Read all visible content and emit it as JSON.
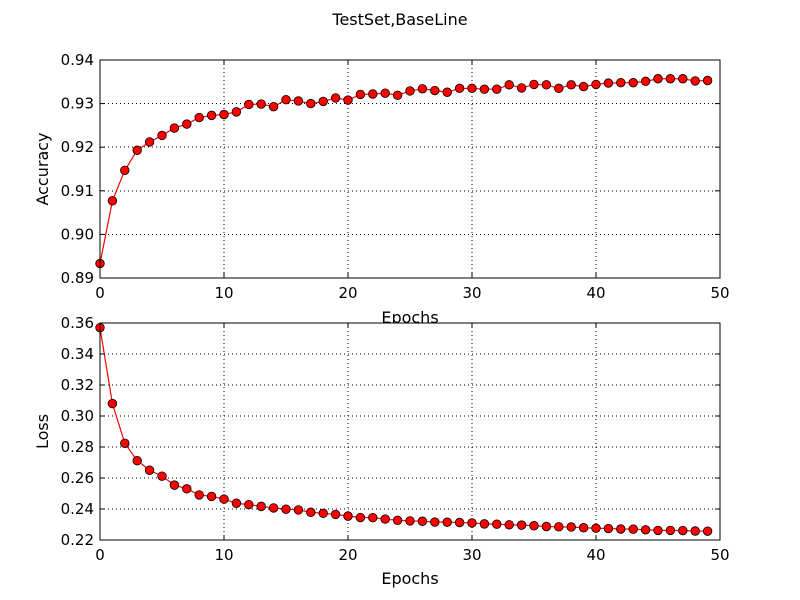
{
  "figure": {
    "suptitle": "TestSet,BaseLine"
  },
  "colors": {
    "line": "#ff0000",
    "marker_fill": "#ff0000",
    "marker_edge": "#000000",
    "grid": "#000000",
    "background": "#ffffff"
  },
  "chart_data": [
    {
      "type": "line",
      "title": "",
      "xlabel": "Epochs",
      "ylabel": "Accuracy",
      "xlim": [
        0,
        50
      ],
      "ylim": [
        0.89,
        0.94
      ],
      "xticks": [
        "0",
        "10",
        "20",
        "30",
        "40",
        "50"
      ],
      "yticks": [
        "0.89",
        "0.90",
        "0.91",
        "0.92",
        "0.93",
        "0.94"
      ],
      "grid": true,
      "marker": "circle",
      "series": [
        {
          "x": [
            0,
            1,
            2,
            3,
            4,
            5,
            6,
            7,
            8,
            9,
            10,
            11,
            12,
            13,
            14,
            15,
            16,
            17,
            18,
            19,
            20,
            21,
            22,
            23,
            24,
            25,
            26,
            27,
            28,
            29,
            30,
            31,
            32,
            33,
            34,
            35,
            36,
            37,
            38,
            39,
            40,
            41,
            42,
            43,
            44,
            45,
            46,
            47,
            48,
            49
          ],
          "values": [
            0.8933,
            0.9077,
            0.9147,
            0.9193,
            0.9212,
            0.9227,
            0.9244,
            0.9253,
            0.9268,
            0.9273,
            0.9275,
            0.9281,
            0.9298,
            0.9299,
            0.9293,
            0.9309,
            0.9306,
            0.93,
            0.9305,
            0.9313,
            0.9308,
            0.9321,
            0.9322,
            0.9324,
            0.9319,
            0.9329,
            0.9334,
            0.933,
            0.9326,
            0.9335,
            0.9335,
            0.9333,
            0.9333,
            0.9343,
            0.9336,
            0.9344,
            0.9343,
            0.9335,
            0.9343,
            0.9339,
            0.9344,
            0.9347,
            0.9348,
            0.9348,
            0.9351,
            0.9357,
            0.9357,
            0.9357,
            0.9352,
            0.9353
          ]
        }
      ]
    },
    {
      "type": "line",
      "title": "",
      "xlabel": "Epochs",
      "ylabel": "Loss",
      "xlim": [
        0,
        50
      ],
      "ylim": [
        0.22,
        0.36
      ],
      "xticks": [
        "0",
        "10",
        "20",
        "30",
        "40",
        "50"
      ],
      "yticks": [
        "0.22",
        "0.24",
        "0.26",
        "0.28",
        "0.30",
        "0.32",
        "0.34",
        "0.36"
      ],
      "grid": true,
      "marker": "circle",
      "series": [
        {
          "x": [
            0,
            1,
            2,
            3,
            4,
            5,
            6,
            7,
            8,
            9,
            10,
            11,
            12,
            13,
            14,
            15,
            16,
            17,
            18,
            19,
            20,
            21,
            22,
            23,
            24,
            25,
            26,
            27,
            28,
            29,
            30,
            31,
            32,
            33,
            34,
            35,
            36,
            37,
            38,
            39,
            40,
            41,
            42,
            43,
            44,
            45,
            46,
            47,
            48,
            49
          ],
          "values": [
            0.357,
            0.308,
            0.2824,
            0.2712,
            0.265,
            0.2612,
            0.2554,
            0.253,
            0.2491,
            0.2481,
            0.2464,
            0.2437,
            0.2428,
            0.2417,
            0.2407,
            0.2399,
            0.2394,
            0.2379,
            0.2372,
            0.2365,
            0.2354,
            0.2345,
            0.2344,
            0.2335,
            0.2327,
            0.2323,
            0.2321,
            0.2316,
            0.2315,
            0.2313,
            0.231,
            0.2304,
            0.2302,
            0.2298,
            0.2296,
            0.2292,
            0.2287,
            0.2285,
            0.2284,
            0.2279,
            0.2276,
            0.2274,
            0.2271,
            0.227,
            0.2266,
            0.2262,
            0.2262,
            0.2261,
            0.2258,
            0.2257
          ]
        }
      ]
    }
  ]
}
